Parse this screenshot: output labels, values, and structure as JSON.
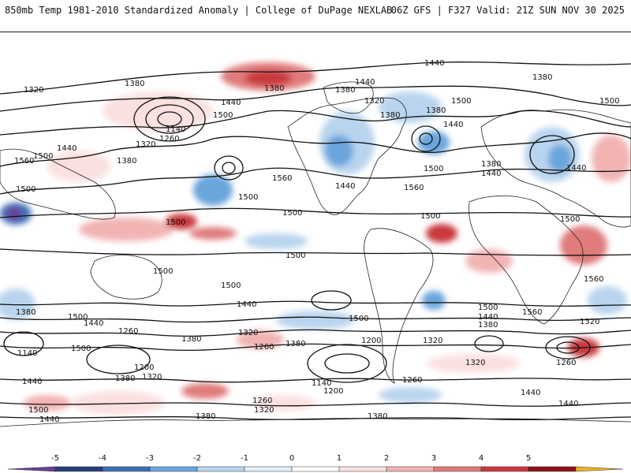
{
  "header": {
    "left_title": "850mb Temp 1981-2010 Standardized Anomaly | College of DuPage NEXLAB",
    "right_title": "06Z GFS | F327 Valid: 21Z SUN NOV 30 2025"
  },
  "colors": {
    "colorbar": [
      "#6a3d9a",
      "#283e7a",
      "#3d6fb6",
      "#6aa5dc",
      "#b9d4ee",
      "#e3eef8",
      "#ffffff",
      "#fbe0e0",
      "#f2b3b3",
      "#e07b7b",
      "#c9383e",
      "#8e0f1e",
      "#f0b323"
    ],
    "contour": "#111111",
    "coast": "#222222"
  },
  "colorbar": {
    "ticks": [
      "-5",
      "-4",
      "-3",
      "-2",
      "-1",
      "0",
      "1",
      "2",
      "3",
      "4",
      "5"
    ]
  },
  "contour_labels": [
    {
      "text": "1440"
    },
    {
      "text": "1380"
    },
    {
      "text": "1320"
    },
    {
      "text": "1380"
    },
    {
      "text": "1440"
    },
    {
      "text": "1380"
    },
    {
      "text": "1500"
    },
    {
      "text": "1500"
    },
    {
      "text": "1380"
    },
    {
      "text": "1440"
    },
    {
      "text": "1500"
    },
    {
      "text": "1140"
    },
    {
      "text": "1260"
    },
    {
      "text": "1320"
    },
    {
      "text": "1380"
    },
    {
      "text": "1440"
    },
    {
      "text": "1500"
    },
    {
      "text": "1560"
    },
    {
      "text": "1560"
    },
    {
      "text": "1500"
    },
    {
      "text": "1440"
    },
    {
      "text": "1560"
    },
    {
      "text": "1500"
    },
    {
      "text": "1500"
    },
    {
      "text": "1500"
    },
    {
      "text": "1380"
    },
    {
      "text": "1440"
    },
    {
      "text": "1500"
    },
    {
      "text": "1500"
    },
    {
      "text": "1380"
    },
    {
      "text": "1320"
    },
    {
      "text": "1440"
    },
    {
      "text": "1380"
    },
    {
      "text": "1440"
    },
    {
      "text": "1500"
    },
    {
      "text": "1500"
    },
    {
      "text": "1500"
    },
    {
      "text": "1560"
    },
    {
      "text": "1500"
    },
    {
      "text": "1500"
    },
    {
      "text": "1500"
    },
    {
      "text": "1440"
    },
    {
      "text": "1500"
    },
    {
      "text": "1560"
    },
    {
      "text": "1440"
    },
    {
      "text": "1380"
    },
    {
      "text": "1320"
    },
    {
      "text": "1380"
    },
    {
      "text": "1140"
    },
    {
      "text": "1440"
    },
    {
      "text": "1260"
    },
    {
      "text": "1380"
    },
    {
      "text": "1320"
    },
    {
      "text": "1260"
    },
    {
      "text": "1200"
    },
    {
      "text": "1380"
    },
    {
      "text": "1320"
    },
    {
      "text": "1440"
    },
    {
      "text": "1500"
    },
    {
      "text": "1380"
    },
    {
      "text": "1440"
    },
    {
      "text": "1200"
    },
    {
      "text": "1260"
    },
    {
      "text": "1140"
    },
    {
      "text": "1200"
    },
    {
      "text": "1260"
    },
    {
      "text": "1320"
    },
    {
      "text": "1320"
    },
    {
      "text": "1260"
    },
    {
      "text": "1380"
    },
    {
      "text": "1380"
    },
    {
      "text": "1440"
    },
    {
      "text": "1440"
    },
    {
      "text": "1500"
    },
    {
      "text": "1320"
    }
  ]
}
